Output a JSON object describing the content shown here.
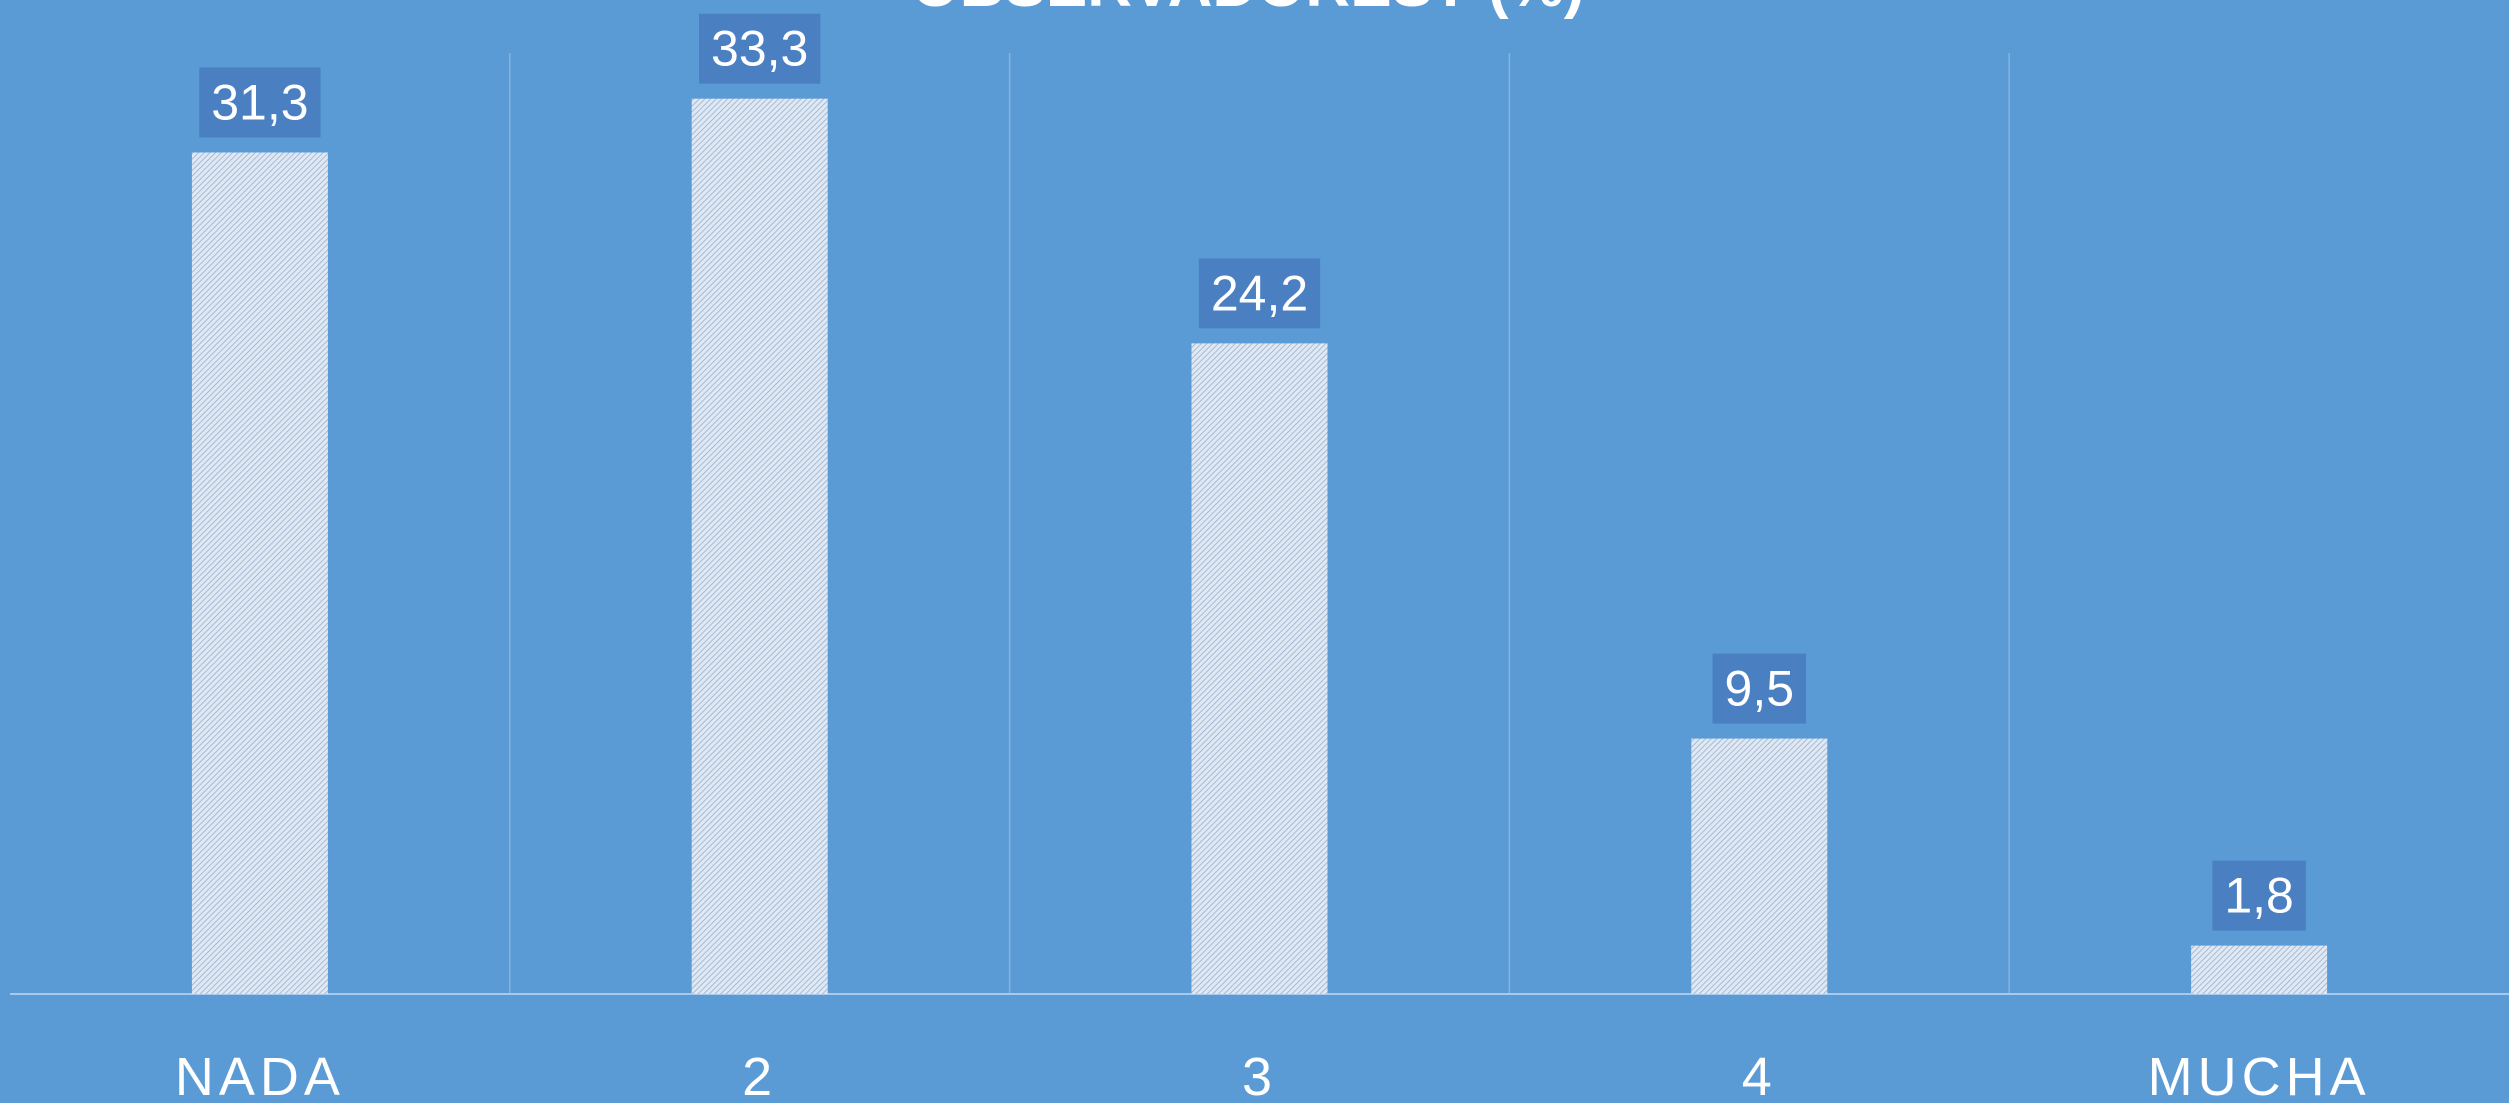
{
  "chart_data": {
    "type": "bar",
    "title": "OBSERVADORES? (%)",
    "categories": [
      "NADA",
      "2",
      "3",
      "4",
      "MUCHA"
    ],
    "values": [
      31.3,
      33.3,
      24.2,
      9.5,
      1.8
    ],
    "value_labels": [
      "31,3",
      "33,3",
      "24,2",
      "9,5",
      "1,8"
    ],
    "ylim": [
      0,
      35
    ],
    "color": "#ffffff"
  }
}
